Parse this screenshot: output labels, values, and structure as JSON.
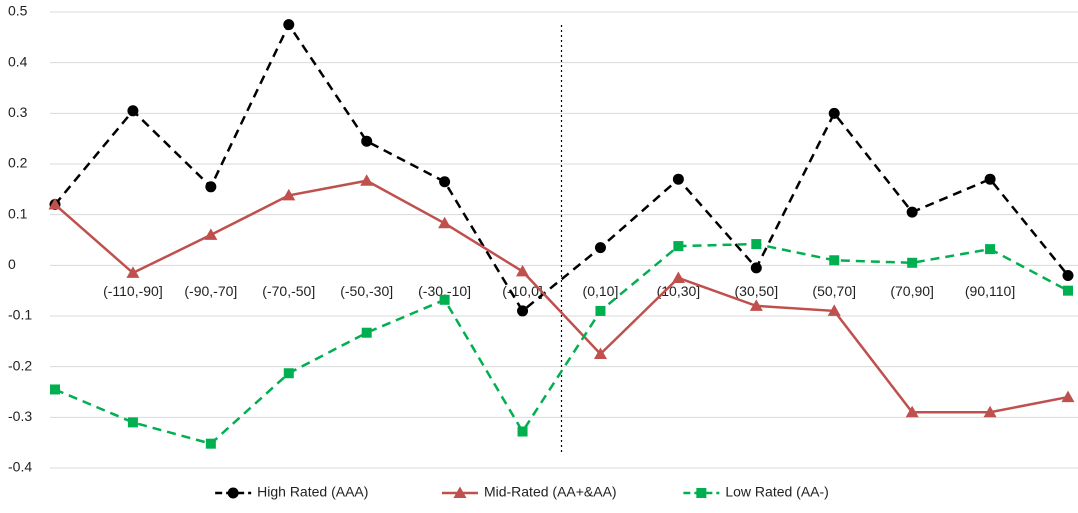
{
  "chart_data": {
    "type": "line",
    "categories": [
      null,
      "(-110,-90]",
      "(-90,-70]",
      "(-70,-50]",
      "(-50,-30]",
      "(-30,-10]",
      "(-10,0]",
      "(0,10]",
      "(10,30]",
      "(30,50]",
      "(50,70]",
      "(70,90]",
      "(90,110]",
      null
    ],
    "series": [
      {
        "name": "High Rated (AAA)",
        "color": "#000000",
        "linestyle": "dashed",
        "marker": "circle",
        "values": [
          0.12,
          0.305,
          0.155,
          0.475,
          0.245,
          0.165,
          -0.09,
          0.035,
          0.17,
          -0.005,
          0.3,
          0.105,
          0.17,
          -0.02
        ]
      },
      {
        "name": "Mid-Rated (AA+&AA)",
        "color": "#c0504d",
        "linestyle": "solid",
        "marker": "triangle",
        "values": [
          0.12,
          -0.015,
          0.06,
          0.138,
          0.167,
          0.083,
          -0.012,
          -0.175,
          -0.025,
          -0.08,
          -0.09,
          -0.29,
          -0.29,
          -0.26
        ]
      },
      {
        "name": "Low Rated (AA-)",
        "color": "#00b050",
        "linestyle": "dashed",
        "marker": "square",
        "values": [
          -0.245,
          -0.31,
          -0.352,
          -0.213,
          -0.133,
          -0.068,
          -0.328,
          -0.09,
          0.038,
          0.042,
          0.01,
          0.005,
          0.032,
          -0.05
        ]
      }
    ],
    "ylim": [
      -0.4,
      0.5
    ],
    "yticks": [
      -0.4,
      -0.3,
      -0.2,
      -0.1,
      0,
      0.1,
      0.2,
      0.3,
      0.4,
      0.5
    ],
    "grid": true,
    "legend": "bottom"
  }
}
